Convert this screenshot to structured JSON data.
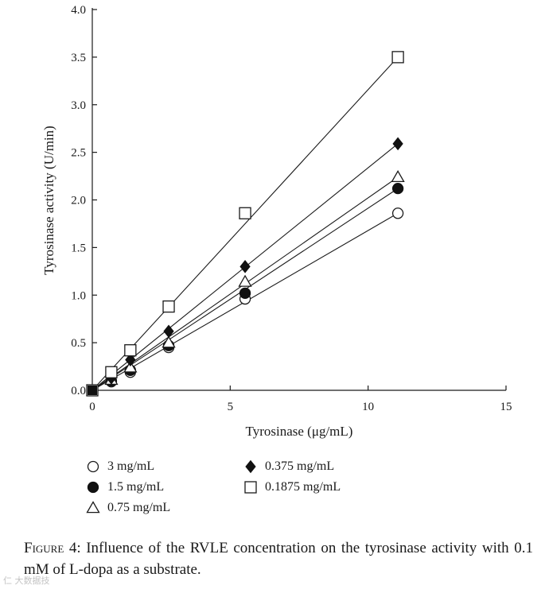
{
  "chart_data": {
    "type": "scatter",
    "title": "",
    "xlabel": "Tyrosinase (μg/mL)",
    "ylabel": "Tyrosinase activity (U/min)",
    "xlim": [
      0,
      15
    ],
    "ylim": [
      0,
      4
    ],
    "xticks": [
      0,
      5,
      10,
      15
    ],
    "xtick_labels": [
      "0",
      "5",
      "10",
      "15"
    ],
    "yticks": [
      0,
      0.5,
      1,
      1.5,
      2,
      2.5,
      3,
      3.5,
      4
    ],
    "ytick_labels": [
      "0.0",
      "0.5",
      "1.0",
      "1.5",
      "2.0",
      "2.5",
      "3.0",
      "3.5",
      "4.0"
    ],
    "grid": false,
    "legend_position": "below",
    "x": [
      0,
      0.69,
      1.38,
      2.77,
      5.54,
      11.08
    ],
    "series": [
      {
        "name": "3 mg/mL",
        "marker": "open-circle",
        "values": [
          0,
          0.09,
          0.19,
          0.45,
          0.96,
          1.86
        ]
      },
      {
        "name": "1.5 mg/mL",
        "marker": "filled-circle",
        "values": [
          0,
          0.1,
          0.21,
          0.47,
          1.02,
          2.12
        ]
      },
      {
        "name": "0.75 mg/mL",
        "marker": "open-triangle",
        "values": [
          0,
          0.11,
          0.24,
          0.5,
          1.14,
          2.24
        ]
      },
      {
        "name": "0.375 mg/mL",
        "marker": "filled-diamond",
        "values": [
          0,
          0.13,
          0.32,
          0.62,
          1.3,
          2.59
        ]
      },
      {
        "name": "0.1875 mg/mL",
        "marker": "open-square",
        "values": [
          0,
          0.19,
          0.42,
          0.88,
          1.86,
          3.5
        ]
      }
    ]
  },
  "caption": {
    "label": "Figure 4:",
    "text": "Influence of the RVLE concentration on the tyrosinase activity with 0.1 mM of L-dopa as a substrate."
  },
  "watermark": "仁 大数据技"
}
